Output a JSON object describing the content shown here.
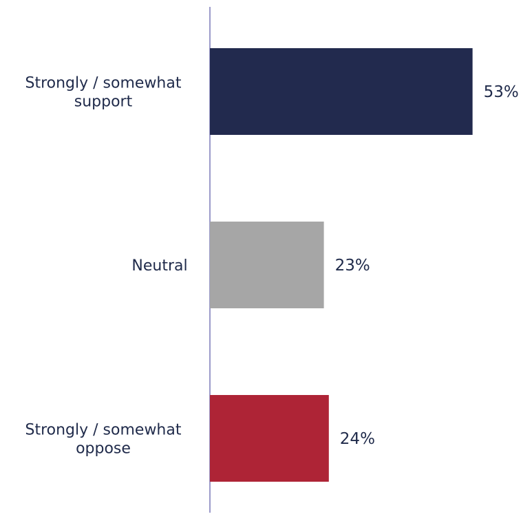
{
  "chart_data": {
    "type": "bar",
    "orientation": "horizontal",
    "categories": [
      [
        "Strongly / somewhat",
        "support"
      ],
      [
        "Neutral"
      ],
      [
        "Strongly / somewhat",
        "oppose"
      ]
    ],
    "values": [
      53,
      23,
      24
    ],
    "value_labels": [
      "53%",
      "23%",
      "24%"
    ],
    "colors": [
      "#222a4e",
      "#a6a6a6",
      "#ae2436"
    ],
    "axis_color": "#7a78b8",
    "text_color": "#1f2a4a",
    "xlim": [
      0,
      100
    ],
    "grid": false,
    "legend": "none",
    "title": "",
    "xlabel": "",
    "ylabel": ""
  }
}
